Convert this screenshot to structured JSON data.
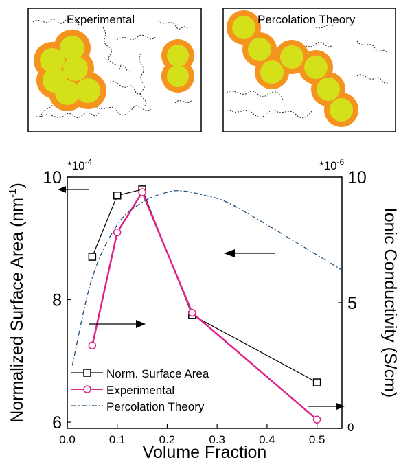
{
  "panels": {
    "left_title": "Experimental",
    "right_title": "Percolation Theory"
  },
  "chart_data": {
    "type": "line",
    "xlabel": "Volume Fraction",
    "ylabel_left": "Normalized Surface Area (nm",
    "ylabel_left_sup": "-1",
    "ylabel_left_tail": ")",
    "ylabel_right": "Ionic Conductivity (S/cm)",
    "left_multiplier_base": "*10",
    "left_multiplier_exp": "-4",
    "right_multiplier_base": "*10",
    "right_multiplier_exp": "-6",
    "xlim": [
      0.0,
      0.55
    ],
    "ylim_left": [
      5.9,
      10.0
    ],
    "ylim_right": [
      0,
      10
    ],
    "x_ticks": [
      0.0,
      0.1,
      0.2,
      0.3,
      0.4,
      0.5
    ],
    "x_tick_labels": [
      "0.0",
      "0.1",
      "0.2",
      "0.3",
      "0.4",
      "0.5"
    ],
    "left_ticks": [
      6,
      8,
      10
    ],
    "left_tick_labels": [
      "6",
      "8",
      "10"
    ],
    "right_ticks": [
      0,
      5,
      10
    ],
    "right_tick_labels": [
      "0",
      "5",
      "10"
    ],
    "series": [
      {
        "name": "Norm. Surface Area",
        "axis": "left",
        "color": "#000000",
        "marker": "square",
        "x": [
          0.05,
          0.1,
          0.15,
          0.25,
          0.5
        ],
        "y": [
          8.7,
          9.7,
          9.8,
          7.75,
          6.65
        ]
      },
      {
        "name": "Experimental",
        "axis": "right",
        "color": "#e0218a",
        "marker": "circle",
        "x": [
          0.05,
          0.1,
          0.15,
          0.25,
          0.5
        ],
        "y": [
          3.3,
          7.8,
          9.4,
          4.6,
          0.35
        ]
      },
      {
        "name": "Percolation Theory",
        "axis": "right",
        "color": "#1f4e79",
        "marker": "none",
        "x": [
          0.01,
          0.05,
          0.1,
          0.15,
          0.2,
          0.23,
          0.27,
          0.32,
          0.4,
          0.45,
          0.5,
          0.55
        ],
        "y": [
          2.5,
          6.0,
          8.1,
          9.0,
          9.4,
          9.45,
          9.3,
          9.0,
          8.1,
          7.5,
          6.9,
          6.3
        ]
      }
    ],
    "legend_position": "bottom-left"
  },
  "colors": {
    "particle_fill": "#d4e01a",
    "particle_shell": "#f5931f"
  }
}
